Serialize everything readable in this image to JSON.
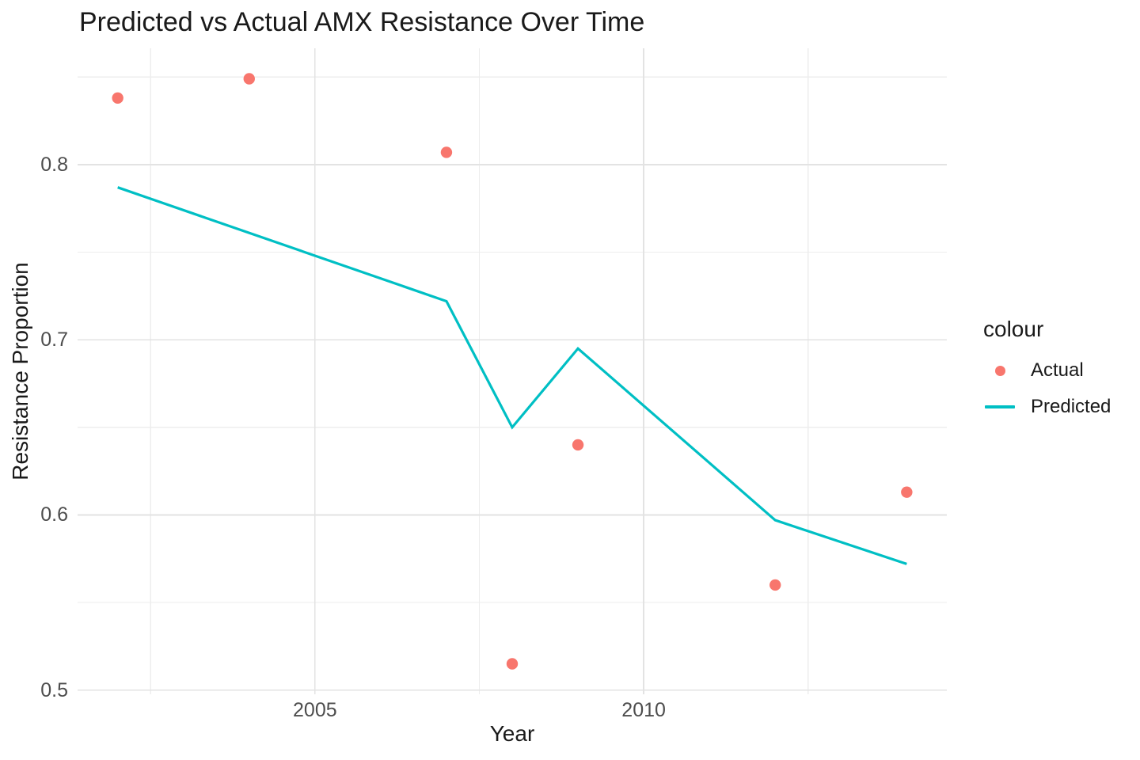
{
  "page": {
    "background": "#FFFFFF"
  },
  "chart_data": {
    "type": "line",
    "title": "Predicted vs Actual AMX Resistance Over Time",
    "xlabel": "Year",
    "ylabel": "Resistance Proportion",
    "x_domain": [
      2001.39,
      2014.61
    ],
    "y_domain": [
      0.4976,
      0.8664
    ],
    "x_ticks": [
      {
        "value": 2005,
        "label": "2005"
      },
      {
        "value": 2010,
        "label": "2010"
      }
    ],
    "x_minor_ticks": [
      2002.5,
      2007.5,
      2012.5
    ],
    "y_ticks": [
      {
        "value": 0.5,
        "label": "0.5"
      },
      {
        "value": 0.6,
        "label": "0.6"
      },
      {
        "value": 0.7,
        "label": "0.7"
      },
      {
        "value": 0.8,
        "label": "0.8"
      }
    ],
    "y_minor_ticks": [
      0.55,
      0.65,
      0.75,
      0.85
    ],
    "grid": {
      "on": true,
      "major_color": "#E3E3E3",
      "minor_color": "#EDEDED",
      "panel_background": "#FFFFFF"
    },
    "series": [
      {
        "name": "Actual",
        "kind": "scatter",
        "color": "#F8766D",
        "marker_radius": 7.2,
        "x": [
          2002,
          2004,
          2007,
          2008,
          2009,
          2012,
          2014
        ],
        "y": [
          0.838,
          0.849,
          0.807,
          0.515,
          0.64,
          0.56,
          0.613
        ]
      },
      {
        "name": "Predicted",
        "kind": "line",
        "color": "#00BFC4",
        "line_width": 3.2,
        "x": [
          2002,
          2007,
          2008,
          2009,
          2012,
          2014
        ],
        "y": [
          0.787,
          0.722,
          0.65,
          0.695,
          0.597,
          0.572
        ]
      }
    ],
    "legend": {
      "title": "colour",
      "position": "right",
      "items": [
        {
          "label": "Actual",
          "marker": "point",
          "color": "#F8766D"
        },
        {
          "label": "Predicted",
          "marker": "line",
          "color": "#00BFC4"
        }
      ]
    },
    "text_colors": {
      "title": "#1A1A1A",
      "axis_title": "#1A1A1A",
      "tick_label": "#4D4D4D"
    }
  }
}
